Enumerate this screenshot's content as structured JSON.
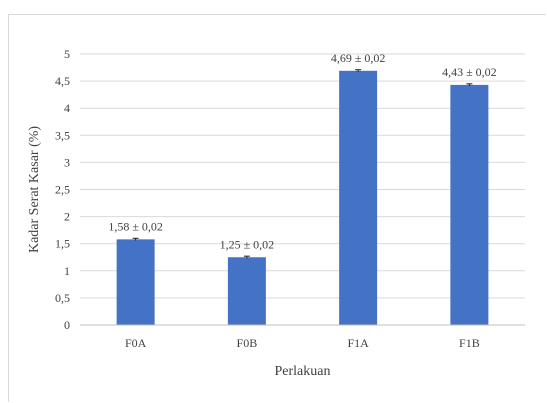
{
  "chart_data": {
    "type": "bar",
    "categories": [
      "F0A",
      "F0B",
      "F1A",
      "F1B"
    ],
    "values": [
      1.58,
      1.25,
      4.69,
      4.43
    ],
    "errors": [
      0.02,
      0.02,
      0.02,
      0.02
    ],
    "data_labels": [
      "1,58 ± 0,02",
      "1,25 ± 0,02",
      "4,69 ± 0,02",
      "4,43 ± 0,02"
    ],
    "xlabel": "Perlakuan",
    "ylabel": "Kadar Serat Kasar  (%)",
    "ylim": [
      0,
      5
    ],
    "yticks": [
      "0",
      "0,5",
      "1",
      "1,5",
      "2",
      "2,5",
      "3",
      "3,5",
      "4",
      "4,5",
      "5"
    ],
    "grid": true,
    "bar_color": "#4472c4",
    "grid_color": "#d9d9d9"
  }
}
